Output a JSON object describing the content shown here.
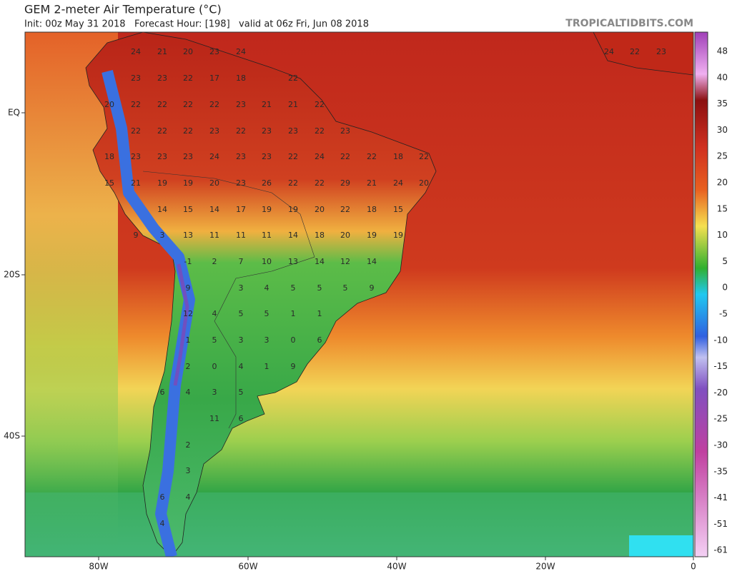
{
  "header": {
    "title": "GEM 2-meter Air Temperature (°C)",
    "subtitle": "Init: 00z May 31 2018   Forecast Hour: [198]   valid at 06z Fri, Jun 08 2018",
    "site": "TROPICALTIDBITS.COM"
  },
  "axes": {
    "latitude_labels": [
      "EQ",
      "20S",
      "40S"
    ],
    "longitude_labels": [
      "80W",
      "60W",
      "40W",
      "20W",
      "0"
    ]
  },
  "colorbar": {
    "labels": [
      "48",
      "40",
      "35",
      "30",
      "25",
      "20",
      "15",
      "10",
      "5",
      "0",
      "-5",
      "-10",
      "-15",
      "-20",
      "-25",
      "-30",
      "-35",
      "-41",
      "-51",
      "-61"
    ]
  },
  "map": {
    "station_values": [
      "24",
      "21",
      "20",
      "23",
      "24",
      "24",
      "22",
      "23",
      "23",
      "23",
      "22",
      "17",
      "18",
      "22",
      "20",
      "22",
      "22",
      "22",
      "22",
      "23",
      "21",
      "21",
      "22",
      "22",
      "22",
      "22",
      "23",
      "22",
      "23",
      "23",
      "22",
      "23",
      "18",
      "23",
      "23",
      "23",
      "24",
      "23",
      "23",
      "22",
      "24",
      "22",
      "22",
      "18",
      "22",
      "15",
      "21",
      "19",
      "19",
      "20",
      "23",
      "26",
      "22",
      "22",
      "29",
      "21",
      "24",
      "20",
      "14",
      "15",
      "14",
      "17",
      "19",
      "19",
      "20",
      "22",
      "18",
      "15",
      "9",
      "3",
      "13",
      "11",
      "11",
      "11",
      "14",
      "18",
      "20",
      "19",
      "19",
      "-1",
      "2",
      "7",
      "10",
      "13",
      "14",
      "12",
      "14",
      "9",
      "3",
      "4",
      "5",
      "5",
      "5",
      "9",
      "12",
      "4",
      "5",
      "5",
      "1",
      "1",
      "1",
      "5",
      "3",
      "3",
      "0",
      "6",
      "2",
      "0",
      "4",
      "1",
      "9",
      "6",
      "4",
      "3",
      "5",
      "11",
      "6",
      "2",
      "3",
      "6",
      "4",
      "4"
    ]
  }
}
